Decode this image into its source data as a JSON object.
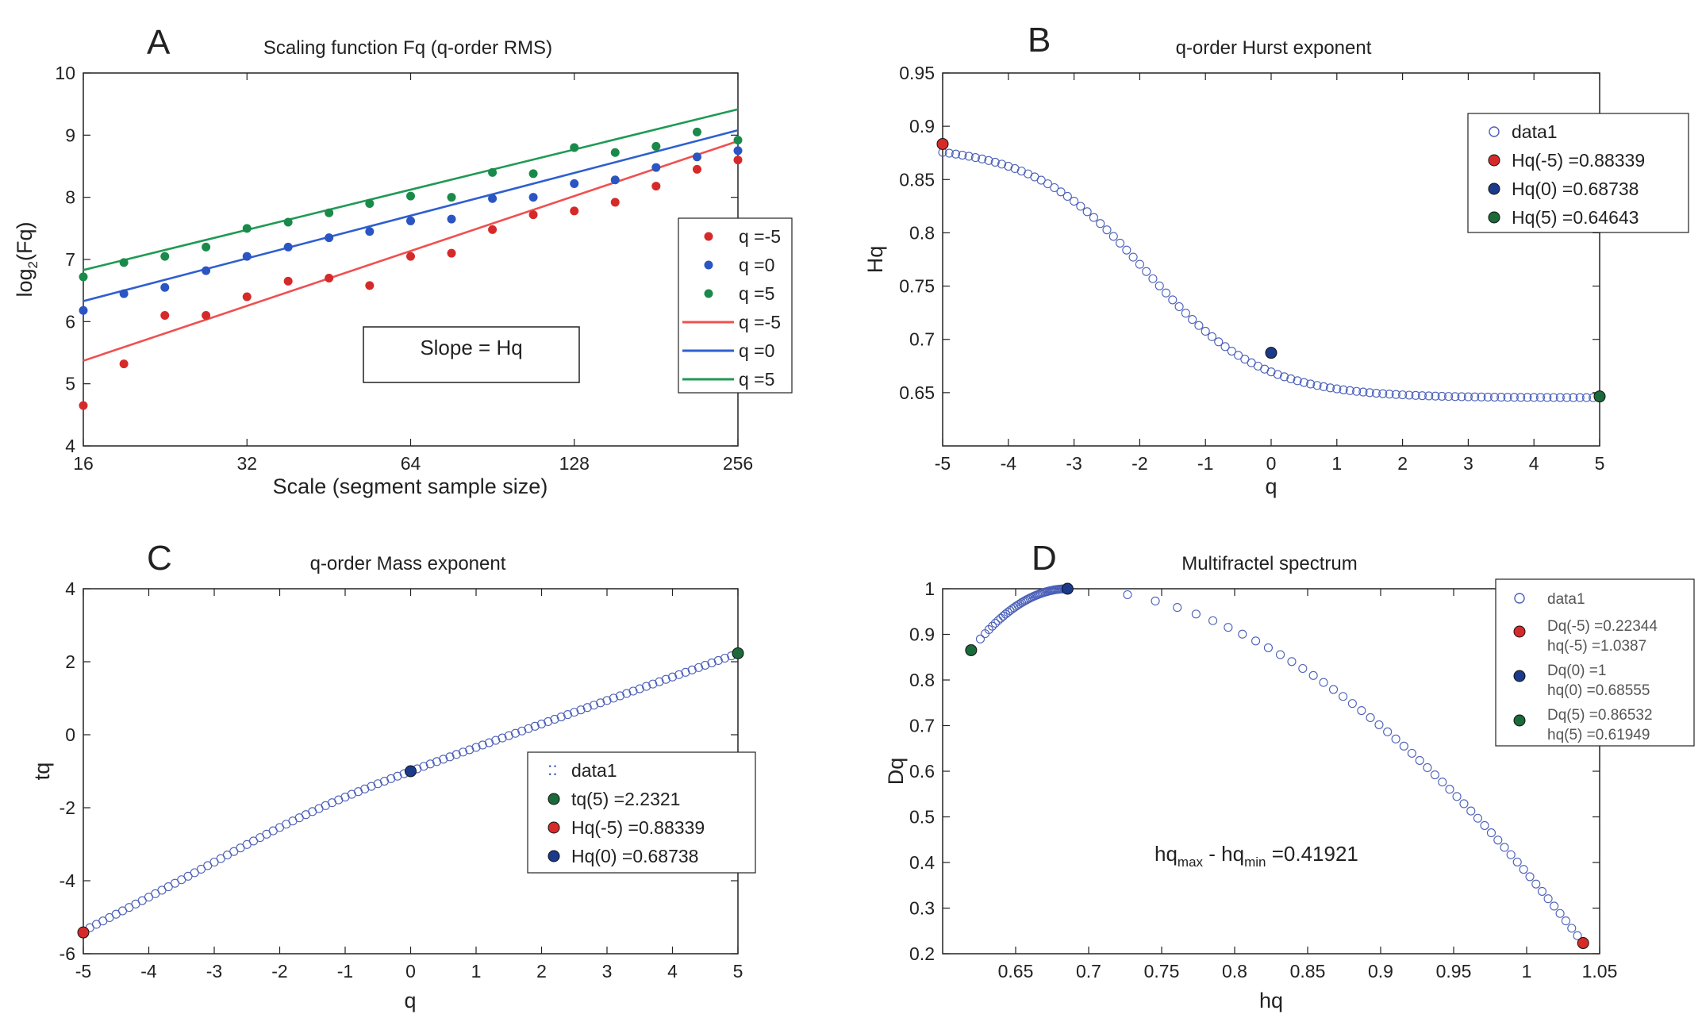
{
  "chart_data": [
    {
      "panel": "A",
      "type": "scatter",
      "title": "Scaling function Fq (q-order RMS)",
      "xlabel": "Scale (segment sample size)",
      "ylabel_base": "log",
      "ylabel_sub": "2",
      "ylabel_rest": "(Fq)",
      "x_scale": "log2",
      "xlim": [
        16,
        256
      ],
      "ylim": [
        4,
        10
      ],
      "x_ticks": [
        16,
        32,
        64,
        128,
        256
      ],
      "x_tick_labels": [
        "16",
        "32",
        "64",
        "128",
        "256"
      ],
      "y_ticks": [
        4,
        5,
        6,
        7,
        8,
        9,
        10
      ],
      "y_tick_labels": [
        "4",
        "5",
        "6",
        "7",
        "8",
        "9",
        "10"
      ],
      "annotation": "Slope = Hq",
      "legend_position": "right-middle",
      "legend_entries": [
        "q =-5",
        "q =0",
        "q =5",
        "q =-5",
        "q =0",
        "q =5"
      ],
      "x": [
        16,
        19,
        22.6,
        26.9,
        32,
        38.1,
        45.3,
        53.8,
        64,
        76.1,
        90.5,
        107.6,
        128,
        152.2,
        181,
        215.3,
        256
      ],
      "series": [
        {
          "name": "q =-5",
          "color": "#d62a2a",
          "marker": "dot",
          "values": [
            4.65,
            5.32,
            6.1,
            6.1,
            6.4,
            6.65,
            6.7,
            6.58,
            7.05,
            7.1,
            7.48,
            7.72,
            7.78,
            7.92,
            8.18,
            8.45,
            8.6
          ],
          "fit": {
            "intercept": 5.37,
            "slope_per_octave": 0.8834
          }
        },
        {
          "name": "q =0",
          "color": "#2a55c2",
          "marker": "dot",
          "values": [
            6.18,
            6.45,
            6.55,
            6.82,
            7.05,
            7.2,
            7.35,
            7.45,
            7.62,
            7.65,
            7.98,
            8.0,
            8.22,
            8.28,
            8.48,
            8.65,
            8.75
          ],
          "fit": {
            "intercept": 6.33,
            "slope_per_octave": 0.6874
          }
        },
        {
          "name": "q =5",
          "color": "#1a8a4a",
          "marker": "dot",
          "values": [
            6.72,
            6.95,
            7.05,
            7.2,
            7.5,
            7.6,
            7.75,
            7.9,
            8.02,
            8.0,
            8.4,
            8.38,
            8.8,
            8.72,
            8.82,
            9.05,
            8.92
          ],
          "fit": {
            "intercept": 6.83,
            "slope_per_octave": 0.6464
          }
        }
      ]
    },
    {
      "panel": "B",
      "type": "scatter",
      "title": "q-order Hurst exponent",
      "xlabel": "q",
      "ylabel": "Hq",
      "xlim": [
        -5,
        5
      ],
      "ylim": [
        0.6,
        0.95
      ],
      "x_ticks": [
        -5,
        -4,
        -3,
        -2,
        -1,
        0,
        1,
        2,
        3,
        4,
        5
      ],
      "x_tick_labels": [
        "-5",
        "-4",
        "-3",
        "-2",
        "-1",
        "0",
        "1",
        "2",
        "3",
        "4",
        "5"
      ],
      "y_ticks": [
        0.65,
        0.7,
        0.75,
        0.8,
        0.85,
        0.9,
        0.95
      ],
      "y_tick_labels": [
        "0.65",
        "0.7",
        "0.75",
        "0.8",
        "0.85",
        "0.9",
        "0.95"
      ],
      "legend_position": "top-right",
      "legend_entries": [
        "data1",
        "Hq(-5) =0.88339",
        "Hq(0) =0.68738",
        "Hq(5) =0.64643"
      ],
      "curve": {
        "q_min": -5,
        "q_max": 5,
        "h_neg": 0.88339,
        "h_zero": 0.68738,
        "h_pos": 0.64643,
        "points": 101
      },
      "highlights": [
        {
          "x": -5,
          "y": 0.88339,
          "color": "#d62a2a"
        },
        {
          "x": 0,
          "y": 0.68738,
          "color": "#1c3a8a"
        },
        {
          "x": 5,
          "y": 0.64643,
          "color": "#1a6a3a"
        }
      ]
    },
    {
      "panel": "C",
      "type": "scatter",
      "title": "q-order Mass exponent",
      "xlabel": "q",
      "ylabel": "tq",
      "xlim": [
        -5,
        5
      ],
      "ylim": [
        -6,
        4
      ],
      "x_ticks": [
        -5,
        -4,
        -3,
        -2,
        -1,
        0,
        1,
        2,
        3,
        4,
        5
      ],
      "x_tick_labels": [
        "-5",
        "-4",
        "-3",
        "-2",
        "-1",
        "0",
        "1",
        "2",
        "3",
        "4",
        "5"
      ],
      "y_ticks": [
        -6,
        -4,
        -2,
        0,
        2,
        4
      ],
      "y_tick_labels": [
        "-6",
        "-4",
        "-2",
        "0",
        "2",
        "4"
      ],
      "legend_position": "bottom-right",
      "legend_entries": [
        "data1",
        "tq(5) =2.2321",
        "Hq(-5) =0.88339",
        "Hq(0) =0.68738"
      ],
      "curve": {
        "q_min": -5,
        "q_max": 5,
        "points": 101
      },
      "highlights": [
        {
          "x": 5,
          "y": 2.2321,
          "color": "#1a6a3a"
        },
        {
          "x": -5,
          "y": -5.417,
          "color": "#d62a2a"
        },
        {
          "x": 0,
          "y": -1.0,
          "color": "#1c3a8a"
        }
      ]
    },
    {
      "panel": "D",
      "type": "scatter",
      "title": "Multifractel spectrum",
      "xlabel": "hq",
      "ylabel": "Dq",
      "xlim": [
        0.6,
        1.05
      ],
      "ylim": [
        0.2,
        1.0
      ],
      "x_ticks": [
        0.65,
        0.7,
        0.75,
        0.8,
        0.85,
        0.9,
        0.95,
        1,
        1.05
      ],
      "x_tick_labels": [
        "0.65",
        "0.7",
        "0.75",
        "0.8",
        "0.85",
        "0.9",
        "0.95",
        "1",
        "1.05"
      ],
      "y_ticks": [
        0.2,
        0.3,
        0.4,
        0.5,
        0.6,
        0.7,
        0.8,
        0.9,
        1
      ],
      "y_tick_labels": [
        "0.2",
        "0.3",
        "0.4",
        "0.5",
        "0.6",
        "0.7",
        "0.8",
        "0.9",
        "1"
      ],
      "annotation_main": "hq",
      "annotation_sub1": "max",
      "annotation_mid": " - hq",
      "annotation_sub2": "min",
      "annotation_end": " =0.41921",
      "legend_position": "top-right",
      "legend_entries": [
        {
          "line1": "data1"
        },
        {
          "line1": "Dq(-5) =0.22344",
          "line2": "hq(-5) =1.0387"
        },
        {
          "line1": "Dq(0) =1",
          "line2": "hq(0) =0.68555"
        },
        {
          "line1": "Dq(5) =0.86532",
          "line2": "hq(5) =0.61949"
        }
      ],
      "curve": {
        "h_left": 0.61949,
        "h_peak": 0.68555,
        "h_right": 1.0387,
        "d_left": 0.86532,
        "d_peak": 1.0,
        "d_right": 0.22344
      },
      "highlights": [
        {
          "x": 1.0387,
          "y": 0.22344,
          "color": "#d62a2a"
        },
        {
          "x": 0.68555,
          "y": 1.0,
          "color": "#1c3a8a"
        },
        {
          "x": 0.61949,
          "y": 0.86532,
          "color": "#1a6a3a"
        }
      ]
    }
  ]
}
